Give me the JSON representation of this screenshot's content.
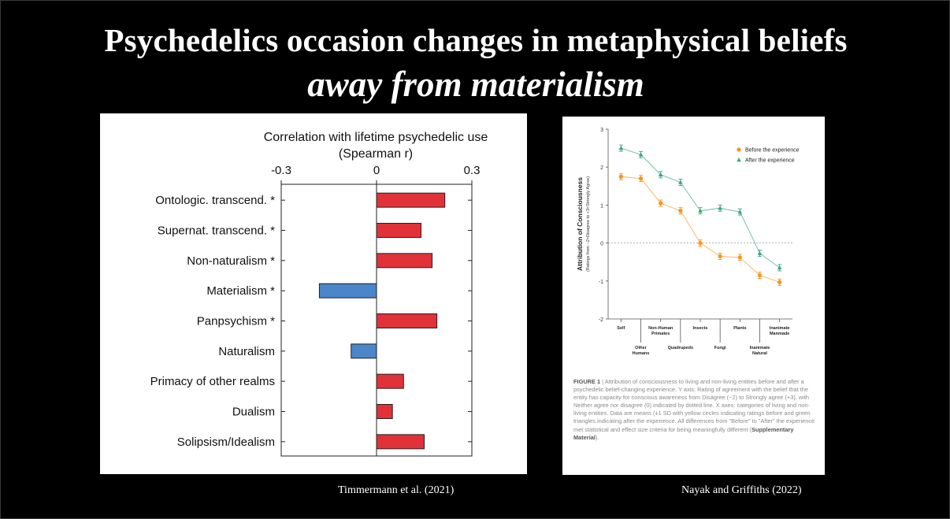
{
  "title": {
    "main": "Psychedelics occasion changes in metaphysical beliefs",
    "sub": "away from materialism"
  },
  "colors": {
    "positive_bar": "#e03238",
    "negative_bar": "#4a86c8",
    "before_series": "#f7941d",
    "after_series": "#3aa67a"
  },
  "chart_data": [
    {
      "type": "bar",
      "orientation": "horizontal",
      "title": "Correlation with lifetime psychedelic use",
      "subtitle": "(Spearman r)",
      "xlim": [
        -0.3,
        0.3
      ],
      "xticks": [
        "-0.3",
        "0",
        "0.3"
      ],
      "grid": false,
      "categories": [
        "Ontologic. transcend. *",
        "Supernat. transcend. *",
        "Non-naturalism *",
        "Materialism *",
        "Panpsychism *",
        "Naturalism",
        "Primacy of other realms",
        "Dualism",
        "Solipsism/Idealism"
      ],
      "values": [
        0.215,
        0.14,
        0.175,
        -0.18,
        0.19,
        -0.08,
        0.085,
        0.05,
        0.15
      ]
    },
    {
      "type": "line",
      "ylabel": "Attribution of Consciousness",
      "ylabel_sub": "(Ratings from −2=Disagree to +3=Strongly Agree)",
      "ylim": [
        -2,
        3
      ],
      "yticks": [
        "3",
        "2",
        "1",
        "0",
        "-1",
        "-2"
      ],
      "x_top": [
        "Self",
        "Non-Human Primates",
        "Insects",
        "Plants",
        "Inanimate Manmade"
      ],
      "x_bottom": [
        "Other Humans",
        "Quadrupeds",
        "Fungi",
        "Inanimate Natural"
      ],
      "categories": [
        "Self",
        "Other Humans",
        "Non-Human Primates",
        "Quadrupeds",
        "Insects",
        "Fungi",
        "Plants",
        "Inanimate Natural",
        "Inanimate Manmade"
      ],
      "series": [
        {
          "name": "Before the experience",
          "values": [
            1.75,
            1.7,
            1.05,
            0.85,
            0.0,
            -0.35,
            -0.38,
            -0.85,
            -1.03
          ]
        },
        {
          "name": "After the experience",
          "values": [
            2.5,
            2.33,
            1.8,
            1.6,
            0.85,
            0.92,
            0.82,
            -0.27,
            -0.65
          ]
        }
      ],
      "caption_label": "FIGURE 1",
      "caption": "| Attribution of consciousness to living and non-living entities before and after a psychedelic belief-changing experience. Y axis: Rating of agreement with the belief that the entity has capacity for conscious awareness from Disagree (−2) to Strongly agree (+3), with Neither agree nor disagree (0) indicated by dotted line. X axes: categories of living and non-living entities. Data are means (±1 SD with yellow circles indicating ratings before and green triangles indicating after the experience. All differences from \"Before\" to \"After\" the experience met statistical and effect size criteria for being meaningfully different (",
      "caption_bold": "Supplementary Material",
      "caption_end": ")."
    }
  ],
  "citations": {
    "left": "Timmermann et al. (2021)",
    "right": "Nayak and Griffiths (2022)"
  }
}
